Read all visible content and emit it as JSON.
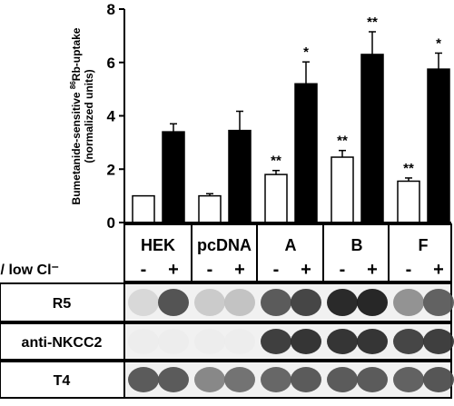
{
  "chart_data": {
    "type": "bar",
    "ylabel_prefix": "Bumetanide-sensitive ",
    "ylabel_sup": "86",
    "ylabel_suffix": "Rb-uptake",
    "ylabel_units": "(normalized units)",
    "ylim": [
      0,
      8
    ],
    "yticks": [
      0,
      2,
      4,
      6,
      8
    ],
    "grid": false,
    "groups": [
      "HEK",
      "pcDNA",
      "A",
      "B",
      "F"
    ],
    "condition_label": "hypo / low Cl⁻",
    "conditions": [
      "-",
      "+"
    ],
    "series": [
      {
        "name": "-",
        "fill": "#ffffff",
        "values": [
          1.0,
          1.0,
          1.8,
          2.45,
          1.55
        ],
        "errors": [
          0.0,
          0.08,
          0.15,
          0.25,
          0.12
        ],
        "significance": [
          "",
          "",
          "**",
          "**",
          "**"
        ]
      },
      {
        "name": "+",
        "fill": "#000000",
        "values": [
          3.4,
          3.45,
          5.2,
          6.3,
          5.75
        ],
        "errors": [
          0.3,
          0.72,
          0.82,
          0.85,
          0.6
        ],
        "significance": [
          "",
          "",
          "*",
          "**",
          "*"
        ]
      }
    ],
    "blot_rows": [
      "R5",
      "anti-NKCC2",
      "T4"
    ],
    "blot_intensity": [
      [
        0.12,
        0.75,
        0.18,
        0.22,
        0.72,
        0.82,
        0.95,
        0.97,
        0.45,
        0.68
      ],
      [
        0.02,
        0.02,
        0.02,
        0.02,
        0.85,
        0.9,
        0.9,
        0.9,
        0.82,
        0.85
      ],
      [
        0.72,
        0.72,
        0.5,
        0.6,
        0.66,
        0.72,
        0.72,
        0.72,
        0.68,
        0.74
      ]
    ]
  }
}
